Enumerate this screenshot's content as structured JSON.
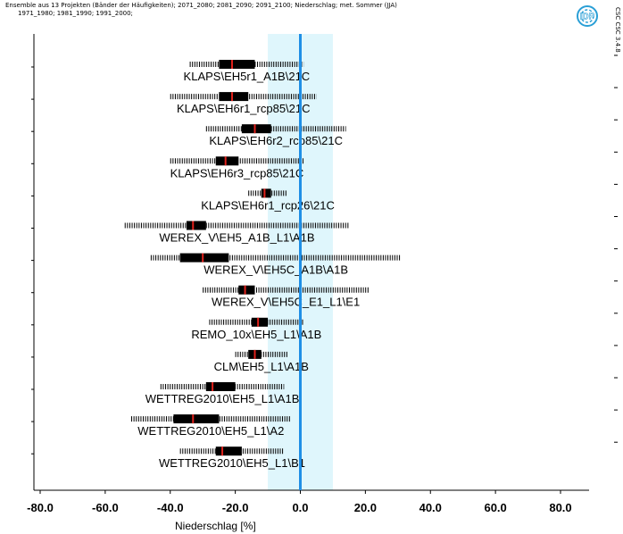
{
  "header": {
    "line1": "Ensemble aus  13 Projekten (Bänder der Häufigkeiten);  2071_2080; 2081_2090; 2091_2100;  Niederschlag;    met. Sommer (JJA)",
    "line2": "1971_1980; 1981_1990; 1991_2000;"
  },
  "logo": {
    "text": "IDP",
    "icon": "idp-logo-icon",
    "color": "#2a9fd6"
  },
  "vertical_text": "CSC CSC 3.4.8",
  "chart_data": {
    "type": "box",
    "xlabel": "Niederschlag [%]",
    "xlim": [
      -80,
      80
    ],
    "xticks": [
      -80,
      -60,
      -40,
      -20,
      0,
      20,
      40,
      60,
      80
    ],
    "xtick_labels": [
      "-80.0",
      "-60.0",
      "-40.0",
      "-20.0",
      "0.0",
      "20.0",
      "40.0",
      "60.0",
      "80.0"
    ],
    "shaded_band": [
      -10,
      10
    ],
    "reference_line": 0,
    "colors": {
      "band": "#dff6fc",
      "reference": "#1f8fe6",
      "median": "#e0211b",
      "box": "#000000"
    },
    "series": [
      {
        "name": "KLAPS\\EH5r1_A1B\\21C",
        "whisker": [
          -34,
          1
        ],
        "box": [
          -25,
          -14
        ],
        "median": -21
      },
      {
        "name": "KLAPS\\EH6r1_rcp85\\21C",
        "whisker": [
          -40,
          5
        ],
        "box": [
          -25,
          -16
        ],
        "median": -21
      },
      {
        "name": "KLAPS\\EH6r2_rcp85\\21C",
        "whisker": [
          -29,
          14
        ],
        "box": [
          -18,
          -9
        ],
        "median": -14
      },
      {
        "name": "KLAPS\\EH6r3_rcp85\\21C",
        "whisker": [
          -40,
          1
        ],
        "box": [
          -26,
          -19
        ],
        "median": -23
      },
      {
        "name": "KLAPS\\EH6r1_rcp26\\21C",
        "whisker": [
          -16,
          -4
        ],
        "box": [
          -12,
          -9
        ],
        "median": -11
      },
      {
        "name": "WEREX_V\\EH5_A1B_L1\\A1B",
        "whisker": [
          -54,
          15
        ],
        "box": [
          -35,
          -29
        ],
        "median": -33
      },
      {
        "name": "WEREX_V\\EH5C_A1B\\A1B",
        "whisker": [
          -46,
          31
        ],
        "box": [
          -37,
          -22
        ],
        "median": -30
      },
      {
        "name": "WEREX_V\\EH5C_E1_L1\\E1",
        "whisker": [
          -30,
          21
        ],
        "box": [
          -19,
          -14
        ],
        "median": -17
      },
      {
        "name": "REMO_10x\\EH5_L1\\A1B",
        "whisker": [
          -28,
          1
        ],
        "box": [
          -15,
          -10
        ],
        "median": -13
      },
      {
        "name": "CLM\\EH5_L1\\A1B",
        "whisker": [
          -20,
          -4
        ],
        "box": [
          -16,
          -12
        ],
        "median": -14
      },
      {
        "name": "WETTREG2010\\EH5_L1\\A1B",
        "whisker": [
          -43,
          -5
        ],
        "box": [
          -29,
          -20
        ],
        "median": -27
      },
      {
        "name": "WETTREG2010\\EH5_L1\\A2",
        "whisker": [
          -52,
          -3
        ],
        "box": [
          -39,
          -25
        ],
        "median": -33
      },
      {
        "name": "WETTREG2010\\EH5_L1\\B1",
        "whisker": [
          -37,
          -5
        ],
        "box": [
          -26,
          -18
        ],
        "median": -24
      }
    ]
  }
}
